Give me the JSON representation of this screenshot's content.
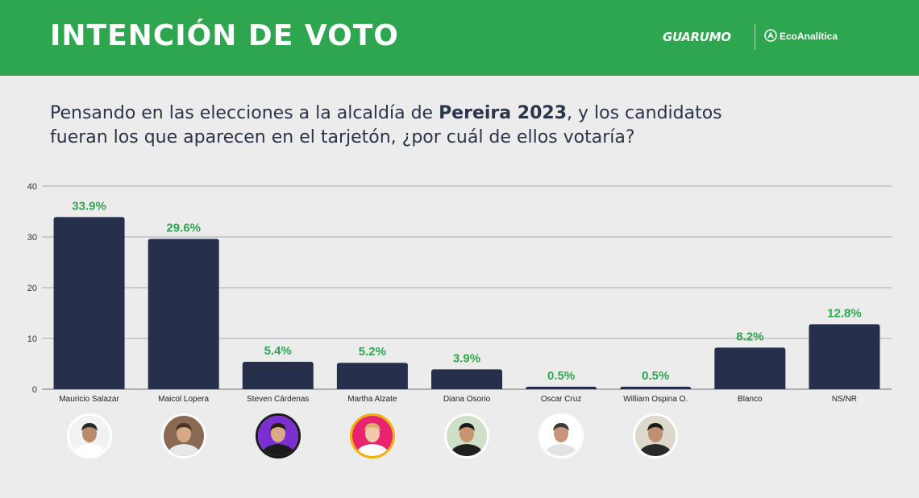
{
  "header": {
    "title": "INTENCIÓN DE VOTO",
    "logo_primary": "GUARUMO",
    "logo_secondary": "EcoAnalítica",
    "background_color": "#2ea64f"
  },
  "question": {
    "part1": "Pensando en las elecciones a la alcaldía de ",
    "highlight": "Pereira 2023",
    "part2": ", y los candidatos fueran los que aparecen en el tarjetón, ¿por cuál de ellos votaría?"
  },
  "chart_data": {
    "type": "bar",
    "categories": [
      "Mauricio Salazar",
      "Maicol Lopera",
      "Steven Cárdenas",
      "Martha Alzate",
      "Diana Osorio",
      "Oscar Cruz",
      "William Ospina O.",
      "Blanco",
      "NS/NR"
    ],
    "values": [
      33.9,
      29.6,
      5.4,
      5.2,
      3.9,
      0.5,
      0.5,
      8.2,
      12.8
    ],
    "data_labels": [
      "33.9%",
      "29.6%",
      "5.4%",
      "5.2%",
      "3.9%",
      "0.5%",
      "0.5%",
      "8.2%",
      "12.8%"
    ],
    "ylim": [
      0,
      40
    ],
    "yticks": [
      0,
      10,
      20,
      30,
      40
    ],
    "grid": true,
    "bar_color": "#26304a",
    "label_color": "#2ea64f"
  },
  "candidate_photos": [
    {
      "name": "Mauricio Salazar",
      "bg": "#f2f2f2",
      "ring": "#ffffff",
      "shirt": "#ffffff",
      "skin": "#b98a6c",
      "hair": "#2a2a2a"
    },
    {
      "name": "Maicol Lopera",
      "bg": "#8a6a52",
      "ring": "#ffffff",
      "shirt": "#e8e8ea",
      "skin": "#d5a88a",
      "hair": "#4a3324"
    },
    {
      "name": "Steven Cárdenas",
      "bg": "#7b2fd0",
      "ring": "#1a1a1a",
      "shirt": "#1c1c1c",
      "skin": "#d9a98a",
      "hair": "#2a1c14"
    },
    {
      "name": "Martha Alzate",
      "bg": "#e8246f",
      "ring": "#f0b400",
      "shirt": "#ffffff",
      "skin": "#f0c9a8",
      "hair": "#d8b070"
    },
    {
      "name": "Diana Osorio",
      "bg": "#cfe0c8",
      "ring": "#ffffff",
      "shirt": "#1f1f1f",
      "skin": "#c7946f",
      "hair": "#1a1a1a"
    },
    {
      "name": "Oscar Cruz",
      "bg": "#ffffff",
      "ring": "#ffffff",
      "shirt": "#e2e2e2",
      "skin": "#c9957a",
      "hair": "#3a3a3a"
    },
    {
      "name": "William Ospina O.",
      "bg": "#ddd7cc",
      "ring": "#ffffff",
      "shirt": "#2a2a2a",
      "skin": "#c08e70",
      "hair": "#1c1c1c"
    }
  ]
}
